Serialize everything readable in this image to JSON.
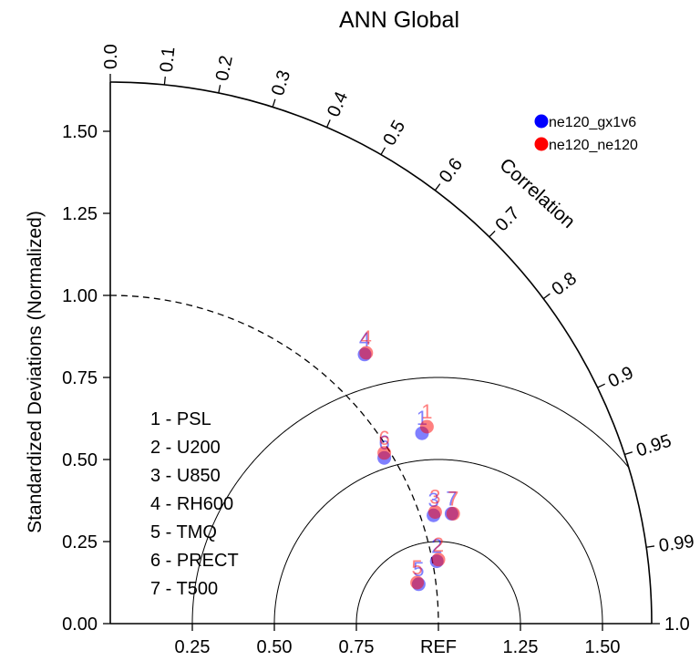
{
  "chart_data": {
    "type": "scatter",
    "subtype": "taylor-diagram",
    "title": "ANN Global",
    "ylabel": "Standardized Deviations (Normalized)",
    "angular_label": "Correlation",
    "radial_max": 1.65,
    "std_ticks": [
      "0.00",
      "0.25",
      "0.50",
      "0.75",
      "1.00",
      "1.25",
      "1.50"
    ],
    "x_ticks": [
      {
        "value": 0.25,
        "label": "0.25"
      },
      {
        "value": 0.5,
        "label": "0.50"
      },
      {
        "value": 0.75,
        "label": "0.75"
      },
      {
        "value": 1.0,
        "label": "REF"
      },
      {
        "value": 1.25,
        "label": "1.25"
      },
      {
        "value": 1.5,
        "label": "1.50"
      }
    ],
    "correlation_ticks": [
      {
        "value": 0.0,
        "label": "0.0"
      },
      {
        "value": 0.1,
        "label": "0.1"
      },
      {
        "value": 0.2,
        "label": "0.2"
      },
      {
        "value": 0.3,
        "label": "0.3"
      },
      {
        "value": 0.4,
        "label": "0.4"
      },
      {
        "value": 0.5,
        "label": "0.5"
      },
      {
        "value": 0.6,
        "label": "0.6"
      },
      {
        "value": 0.7,
        "label": "0.7"
      },
      {
        "value": 0.8,
        "label": "0.8"
      },
      {
        "value": 0.9,
        "label": "0.9"
      },
      {
        "value": 0.95,
        "label": "0.95"
      },
      {
        "value": 0.99,
        "label": "0.99"
      },
      {
        "value": 1.0,
        "label": "1.0"
      }
    ],
    "rms_arcs": [
      0.25,
      0.5,
      0.75
    ],
    "reference_std": 1.0,
    "grid": false,
    "legend_position": "top-right",
    "series": [
      {
        "name": "ne120_gx1v6",
        "color": "#0000ff",
        "points": [
          {
            "id": "1",
            "x": 0.95,
            "y": 0.58
          },
          {
            "id": "2",
            "x": 0.995,
            "y": 0.19
          },
          {
            "id": "3",
            "x": 0.985,
            "y": 0.33
          },
          {
            "id": "4",
            "x": 0.775,
            "y": 0.82
          },
          {
            "id": "5",
            "x": 0.94,
            "y": 0.12
          },
          {
            "id": "6",
            "x": 0.835,
            "y": 0.505
          },
          {
            "id": "7",
            "x": 1.04,
            "y": 0.335
          }
        ]
      },
      {
        "name": "ne120_ne120",
        "color": "#ff0000",
        "points": [
          {
            "id": "1",
            "x": 0.965,
            "y": 0.6
          },
          {
            "id": "2",
            "x": 1.0,
            "y": 0.195
          },
          {
            "id": "3",
            "x": 0.99,
            "y": 0.34
          },
          {
            "id": "4",
            "x": 0.78,
            "y": 0.825
          },
          {
            "id": "5",
            "x": 0.935,
            "y": 0.125
          },
          {
            "id": "6",
            "x": 0.835,
            "y": 0.52
          },
          {
            "id": "7",
            "x": 1.045,
            "y": 0.335
          }
        ]
      }
    ],
    "variable_key": [
      {
        "id": "1",
        "label": "1 - PSL"
      },
      {
        "id": "2",
        "label": "2 - U200"
      },
      {
        "id": "3",
        "label": "3 - U850"
      },
      {
        "id": "4",
        "label": "4 - RH600"
      },
      {
        "id": "5",
        "label": "5 - TMQ"
      },
      {
        "id": "6",
        "label": "6 - PRECT"
      },
      {
        "id": "7",
        "label": "7 - T500"
      }
    ]
  }
}
